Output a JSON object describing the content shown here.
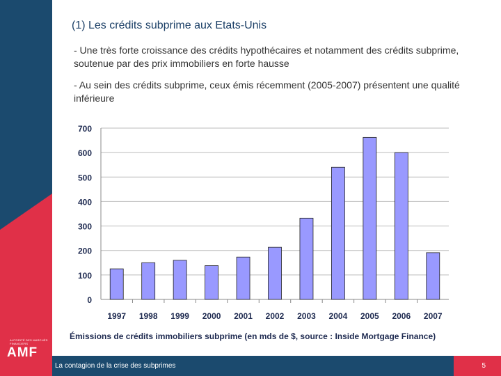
{
  "title": "(1) Les crédits subprime aux Etats-Unis",
  "bullets": [
    "- Une très forte croissance des crédits hypothécaires et notamment des crédits subprime, soutenue par des prix immobiliers en forte hausse",
    "- Au sein des crédits subprime, ceux émis récemment (2005-2007) présentent une qualité inférieure"
  ],
  "chart_data": {
    "type": "bar",
    "categories": [
      "1997",
      "1998",
      "1999",
      "2000",
      "2001",
      "2002",
      "2003",
      "2004",
      "2005",
      "2006",
      "2007"
    ],
    "values": [
      125,
      150,
      160,
      138,
      173,
      213,
      332,
      540,
      662,
      600,
      191
    ],
    "ylim": [
      0,
      700
    ],
    "yticks": [
      0,
      100,
      200,
      300,
      400,
      500,
      600,
      700
    ],
    "grid": true,
    "bar_color": "#9999ff"
  },
  "caption": "Émissions de crédits immobiliers subprime (en mds de $, source : Inside Mortgage Finance)",
  "footer": {
    "text": "La contagion de la crise des subprimes",
    "page": "5"
  },
  "logo": {
    "text": "AMF",
    "small_text": "AUTORITÉ DES MARCHÉS FINANCIERS"
  },
  "colors": {
    "navy": "#1b4a6e",
    "red": "#e03048"
  }
}
